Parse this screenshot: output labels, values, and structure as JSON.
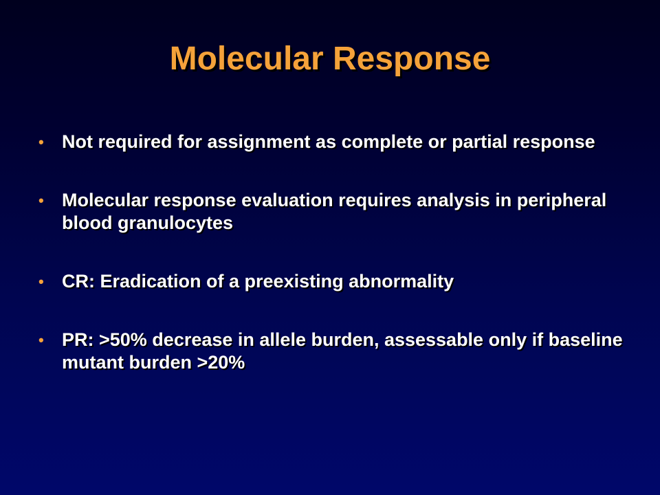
{
  "slide": {
    "title": "Molecular Response",
    "bullets": [
      "Not required for assignment as complete or partial response",
      "Molecular response evaluation requires analysis in peripheral blood granulocytes",
      "CR: Eradication of a preexisting abnormality",
      "PR: >50% decrease in allele burden, assessable only if baseline mutant burden >20%"
    ],
    "bullet_marker": "•",
    "colors": {
      "title": "#f5a23a",
      "bullet_marker": "#f5a23a",
      "text": "#ffffff",
      "background_top": "#00001e",
      "background_bottom": "#00076a"
    }
  }
}
